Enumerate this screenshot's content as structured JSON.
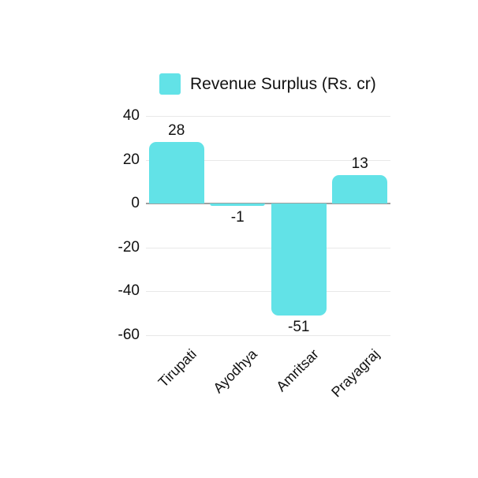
{
  "legend": {
    "label": "Revenue Surplus (Rs. cr)"
  },
  "chart_data": {
    "type": "bar",
    "title": "",
    "categories": [
      "Tirupati",
      "Ayodhya",
      "Amritsar",
      "Prayagraj"
    ],
    "values": [
      28,
      -1,
      -51,
      13
    ],
    "value_labels": [
      "28",
      "-1",
      "-51",
      "13"
    ],
    "series": [
      {
        "name": "Revenue Surplus (Rs. cr)",
        "values": [
          28,
          -1,
          -51,
          13
        ]
      }
    ],
    "xlabel": "",
    "ylabel": "",
    "ylim": [
      -60,
      40
    ],
    "yticks": [
      40,
      20,
      0,
      -20,
      -40,
      -60
    ],
    "grid": true,
    "legend_position": "top",
    "bar_color": "#62e2e7",
    "grid_color": "#e8e8e8",
    "zero_line_color": "#9f9f9f",
    "text_color": "#111111",
    "background_color": "#ffffff"
  }
}
